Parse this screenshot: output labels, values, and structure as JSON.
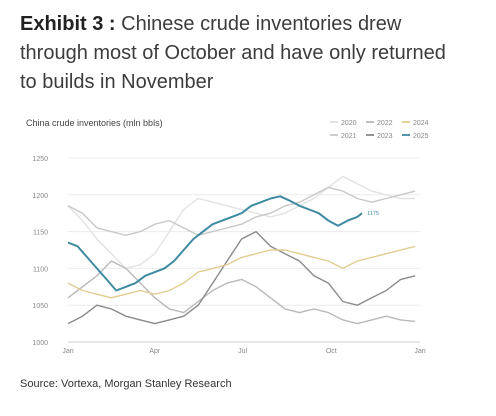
{
  "exhibit": {
    "label": "Exhibit 3 :",
    "title": "Chinese crude inventories drew through most of October and have only returned to builds in November"
  },
  "source": "Source: Vortexa, Morgan Stanley Research",
  "chart_data": {
    "type": "line",
    "title": "China crude inventories (mln bbls)",
    "xlabel": "",
    "ylabel": "",
    "ylim": [
      1000,
      1250
    ],
    "yticks": [
      1000,
      1050,
      1100,
      1150,
      1200,
      1250
    ],
    "xlim": [
      0,
      365
    ],
    "xticks": [
      {
        "day": 0,
        "label": "Jan"
      },
      {
        "day": 90,
        "label": "Apr"
      },
      {
        "day": 181,
        "label": "Jul"
      },
      {
        "day": 273,
        "label": "Oct"
      },
      {
        "day": 365,
        "label": "Jan"
      }
    ],
    "grid": true,
    "legend_position": "top-right",
    "annotation": {
      "text": "1175",
      "series": "2025"
    },
    "series": [
      {
        "name": "2020",
        "color": "#e2e2e2",
        "dash": false,
        "x": [
          0,
          15,
          30,
          45,
          60,
          75,
          90,
          105,
          120,
          135,
          150,
          165,
          180,
          195,
          210,
          225,
          240,
          255,
          270,
          285,
          300,
          315,
          330,
          345,
          360
        ],
        "y": [
          1185,
          1165,
          1140,
          1120,
          1100,
          1105,
          1120,
          1150,
          1180,
          1195,
          1190,
          1185,
          1180,
          1175,
          1170,
          1175,
          1185,
          1195,
          1210,
          1225,
          1215,
          1205,
          1200,
          1195,
          1195
        ]
      },
      {
        "name": "2021",
        "color": "#c8c8c8",
        "dash": false,
        "x": [
          0,
          15,
          30,
          45,
          60,
          75,
          90,
          105,
          120,
          135,
          150,
          165,
          180,
          195,
          210,
          225,
          240,
          255,
          270,
          285,
          300,
          315,
          330,
          345,
          360
        ],
        "y": [
          1185,
          1175,
          1155,
          1150,
          1145,
          1150,
          1160,
          1165,
          1155,
          1145,
          1150,
          1155,
          1160,
          1170,
          1175,
          1185,
          1190,
          1200,
          1210,
          1205,
          1195,
          1190,
          1195,
          1200,
          1205
        ]
      },
      {
        "name": "2022",
        "color": "#b9b9b9",
        "dash": false,
        "x": [
          0,
          15,
          30,
          45,
          60,
          75,
          90,
          105,
          120,
          135,
          150,
          165,
          180,
          195,
          210,
          225,
          240,
          255,
          270,
          285,
          300,
          315,
          330,
          345,
          360
        ],
        "y": [
          1060,
          1075,
          1090,
          1110,
          1100,
          1080,
          1060,
          1045,
          1040,
          1055,
          1070,
          1080,
          1085,
          1075,
          1060,
          1045,
          1040,
          1045,
          1040,
          1030,
          1025,
          1030,
          1035,
          1030,
          1028
        ]
      },
      {
        "name": "2023",
        "color": "#8a8a8a",
        "dash": false,
        "x": [
          0,
          15,
          30,
          45,
          60,
          75,
          90,
          105,
          120,
          135,
          150,
          165,
          180,
          195,
          210,
          225,
          240,
          255,
          270,
          285,
          300,
          315,
          330,
          345,
          360
        ],
        "y": [
          1025,
          1035,
          1050,
          1045,
          1035,
          1030,
          1025,
          1030,
          1035,
          1050,
          1080,
          1110,
          1140,
          1150,
          1130,
          1120,
          1110,
          1090,
          1080,
          1055,
          1050,
          1060,
          1070,
          1085,
          1090
        ]
      },
      {
        "name": "2024",
        "color": "#e3cc92",
        "dash": false,
        "x": [
          0,
          15,
          30,
          45,
          60,
          75,
          90,
          105,
          120,
          135,
          150,
          165,
          180,
          195,
          210,
          225,
          240,
          255,
          270,
          285,
          300,
          315,
          330,
          345,
          360
        ],
        "y": [
          1080,
          1070,
          1065,
          1060,
          1065,
          1070,
          1065,
          1070,
          1080,
          1095,
          1100,
          1105,
          1115,
          1120,
          1125,
          1125,
          1120,
          1115,
          1110,
          1100,
          1110,
          1115,
          1120,
          1125,
          1130
        ]
      },
      {
        "name": "2025",
        "color": "#3f8aa3",
        "dash": false,
        "x": [
          0,
          10,
          20,
          30,
          40,
          50,
          60,
          70,
          80,
          90,
          100,
          110,
          120,
          130,
          140,
          150,
          160,
          170,
          180,
          190,
          200,
          210,
          220,
          230,
          240,
          250,
          260,
          270,
          280,
          290,
          300,
          305
        ],
        "y": [
          1135,
          1130,
          1115,
          1100,
          1085,
          1070,
          1075,
          1080,
          1090,
          1095,
          1100,
          1110,
          1125,
          1140,
          1150,
          1160,
          1165,
          1170,
          1175,
          1185,
          1190,
          1195,
          1198,
          1192,
          1185,
          1180,
          1175,
          1165,
          1158,
          1165,
          1170,
          1175
        ]
      }
    ]
  }
}
